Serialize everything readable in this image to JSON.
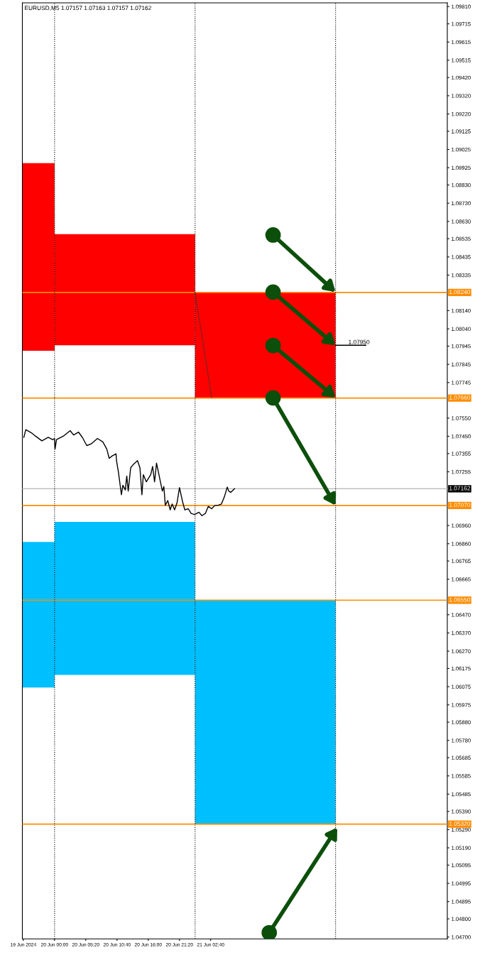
{
  "chart_data": {
    "type": "line",
    "title": "EURUSD,M5 1.07157 1.07163 1.07157 1.07162",
    "xlim": [
      "2024-06-19T18:30",
      "2024-06-22T19:05"
    ],
    "ylim": [
      1.0469,
      1.0983
    ],
    "xticks": [
      {
        "value": "2024-06-19T18:40",
        "label": "19 Jun 2024"
      },
      {
        "value": "2024-06-20T00:00",
        "label": "20 Jun 00:00"
      },
      {
        "value": "2024-06-20T05:20",
        "label": "20 Jun 05:20"
      },
      {
        "value": "2024-06-20T10:40",
        "label": "20 Jun 10:40"
      },
      {
        "value": "2024-06-20T16:00",
        "label": "20 Jun 16:00"
      },
      {
        "value": "2024-06-20T21:20",
        "label": "20 Jun 21:20"
      },
      {
        "value": "2024-06-21T02:40",
        "label": "21 Jun 02:40"
      }
    ],
    "yticks": [
      {
        "value": 1.0981,
        "label": "1.09810"
      },
      1.09715,
      1.09615,
      1.09515,
      {
        "value": 1.0942,
        "label": "1.09420"
      },
      {
        "value": 1.0932,
        "label": "1.09320"
      },
      {
        "value": 1.0922,
        "label": "1.09220"
      },
      1.09125,
      1.09025,
      1.08925,
      {
        "value": 1.0883,
        "label": "1.08830"
      },
      {
        "value": 1.0873,
        "label": "1.08730"
      },
      {
        "value": 1.0863,
        "label": "1.08630"
      },
      1.08535,
      1.08435,
      1.08335,
      {
        "value": 1.0814,
        "label": "1.08140"
      },
      {
        "value": 1.0804,
        "label": "1.08040"
      },
      1.07945,
      1.07845,
      1.07745,
      {
        "value": 1.0755,
        "label": "1.07550"
      },
      {
        "value": 1.0745,
        "label": "1.07450"
      },
      1.07355,
      1.07255,
      {
        "value": 1.0696,
        "label": "1.06960"
      },
      {
        "value": 1.0686,
        "label": "1.06860"
      },
      1.06765,
      1.06665,
      {
        "value": 1.0647,
        "label": "1.06470"
      },
      {
        "value": 1.0637,
        "label": "1.06370"
      },
      {
        "value": 1.0627,
        "label": "1.06270"
      },
      1.06175,
      1.06075,
      1.05975,
      {
        "value": 1.0588,
        "label": "1.05880"
      },
      {
        "value": 1.0578,
        "label": "1.05780"
      },
      1.05685,
      1.05585,
      1.05485,
      {
        "value": 1.0539,
        "label": "1.05390"
      },
      {
        "value": 1.0529,
        "label": "1.05290"
      },
      {
        "value": 1.0519,
        "label": "1.05190"
      },
      1.05095,
      1.04995,
      1.04895,
      {
        "value": 1.048,
        "label": "1.04800"
      },
      {
        "value": 1.047,
        "label": "1.04700"
      }
    ],
    "grid": false,
    "legend": false,
    "series": [
      {
        "type": "bar",
        "color": "#ff0000",
        "x": [
          "2024-06-19T21:15",
          "2024-06-20T12:00",
          "2024-06-21T12:00"
        ],
        "base": [
          1.0792,
          1.0795,
          1.0766
        ],
        "values": [
          0.0103,
          0.0061,
          0.0058
        ]
      },
      {
        "type": "bar",
        "color": "#00bfff",
        "x": [
          "2024-06-19T21:15",
          "2024-06-20T12:00",
          "2024-06-21T12:00"
        ],
        "base": [
          1.0607,
          1.0614,
          1.0532
        ],
        "values": [
          0.008,
          0.0084,
          0.0123
        ]
      },
      {
        "color": "#000000",
        "line_style": "solid",
        "x": [
          "2024-06-19T18:45",
          "2024-06-19T19:05",
          "2024-06-19T20:00",
          "2024-06-19T20:45",
          "2024-06-19T21:50",
          "2024-06-19T22:55",
          "2024-06-19T23:40",
          "2024-06-20T00:00",
          "2024-06-20T00:05",
          "2024-06-20T00:20",
          "2024-06-20T01:30",
          "2024-06-20T02:40",
          "2024-06-20T03:15",
          "2024-06-20T04:05",
          "2024-06-20T04:45",
          "2024-06-20T05:30",
          "2024-06-20T06:15",
          "2024-06-20T07:20",
          "2024-06-20T08:15",
          "2024-06-20T08:55",
          "2024-06-20T09:20",
          "2024-06-20T09:50",
          "2024-06-20T10:30",
          "2024-06-20T10:35",
          "2024-06-20T10:55",
          "2024-06-20T11:25",
          "2024-06-20T11:40",
          "2024-06-20T12:05",
          "2024-06-20T12:20",
          "2024-06-20T12:35",
          "2024-06-20T13:00",
          "2024-06-20T13:30",
          "2024-06-20T14:10",
          "2024-06-20T14:35",
          "2024-06-20T14:55",
          "2024-06-20T15:10",
          "2024-06-20T15:40",
          "2024-06-20T16:25",
          "2024-06-20T16:45",
          "2024-06-20T17:05",
          "2024-06-20T17:25",
          "2024-06-20T17:45",
          "2024-06-20T18:05",
          "2024-06-20T18:25",
          "2024-06-20T18:40",
          "2024-06-20T18:55",
          "2024-06-20T19:20",
          "2024-06-20T19:45",
          "2024-06-20T20:05",
          "2024-06-20T20:30",
          "2024-06-20T20:55",
          "2024-06-20T21:20",
          "2024-06-20T21:55",
          "2024-06-20T22:15",
          "2024-06-20T22:50",
          "2024-06-20T23:20",
          "2024-06-20T23:55",
          "2024-06-21T00:40",
          "2024-06-21T01:10",
          "2024-06-21T01:45",
          "2024-06-21T02:15",
          "2024-06-21T02:50",
          "2024-06-21T03:25",
          "2024-06-21T03:55",
          "2024-06-21T04:30",
          "2024-06-21T05:00",
          "2024-06-21T05:30",
          "2024-06-21T05:45",
          "2024-06-21T06:05",
          "2024-06-21T06:45"
        ],
        "values": [
          1.07444,
          1.07486,
          1.0747,
          1.07451,
          1.07425,
          1.07444,
          1.07432,
          1.07438,
          1.0738,
          1.07432,
          1.07451,
          1.07481,
          1.07457,
          1.07473,
          1.07444,
          1.07399,
          1.07408,
          1.07438,
          1.07419,
          1.0738,
          1.07329,
          1.07342,
          1.07354,
          1.07316,
          1.07251,
          1.07129,
          1.07181,
          1.07155,
          1.07232,
          1.07149,
          1.07277,
          1.07297,
          1.07316,
          1.07277,
          1.07129,
          1.07239,
          1.072,
          1.07239,
          1.07284,
          1.072,
          1.07303,
          1.07251,
          1.072,
          1.07149,
          1.07174,
          1.07071,
          1.07097,
          1.07046,
          1.07078,
          1.07046,
          1.07084,
          1.07168,
          1.07084,
          1.07046,
          1.07052,
          1.07026,
          1.0702,
          1.07033,
          1.07014,
          1.07026,
          1.07065,
          1.07052,
          1.07071,
          1.07071,
          1.07078,
          1.07117,
          1.07171,
          1.07149,
          1.07142,
          1.07162
        ]
      },
      {
        "type": "line",
        "color": "#333333",
        "line_style": "dashed",
        "x": [
          "2024-06-21T00:00",
          "2024-06-21T02:50"
        ],
        "values": [
          1.0824,
          1.0766
        ]
      },
      {
        "type": "line",
        "color": "#000000",
        "line_style": "solid",
        "x": [
          "2024-06-22T00:00",
          "2024-06-22T05:10"
        ],
        "values": [
          1.0795,
          1.0795
        ]
      }
    ],
    "annotations": [
      {
        "text": "1.07950",
        "x": "2024-06-22T04:00",
        "y": 1.0795
      }
    ],
    "ref_lines": [
      {
        "axis": "y",
        "value": 1.0824,
        "label": "1.08240",
        "color": "#ff8c00",
        "line_style": "solid"
      },
      {
        "axis": "y",
        "value": 1.0766,
        "label": "1.07660",
        "color": "#ff8c00",
        "line_style": "solid"
      },
      {
        "axis": "y",
        "value": 1.07162,
        "label": "1.07162",
        "color": "#c0c0c0",
        "line_style": "solid"
      },
      {
        "axis": "y",
        "value": 1.0707,
        "label": "1.07070",
        "color": "#ff8c00",
        "line_style": "solid"
      },
      {
        "axis": "y",
        "value": 1.0655,
        "label": "1.06550",
        "color": "#ff8c00",
        "line_style": "solid"
      },
      {
        "axis": "y",
        "value": 1.0532,
        "label": "1.05320",
        "color": "#ff8c00",
        "line_style": "solid"
      },
      {
        "axis": "x",
        "value": "2024-06-20T00:00",
        "color": "#000000",
        "line_style": "dotted"
      },
      {
        "axis": "x",
        "value": "2024-06-21T00:00",
        "color": "#000000",
        "line_style": "dotted"
      },
      {
        "axis": "x",
        "value": "2024-06-22T00:00",
        "color": "#000000",
        "line_style": "dotted"
      }
    ]
  }
}
